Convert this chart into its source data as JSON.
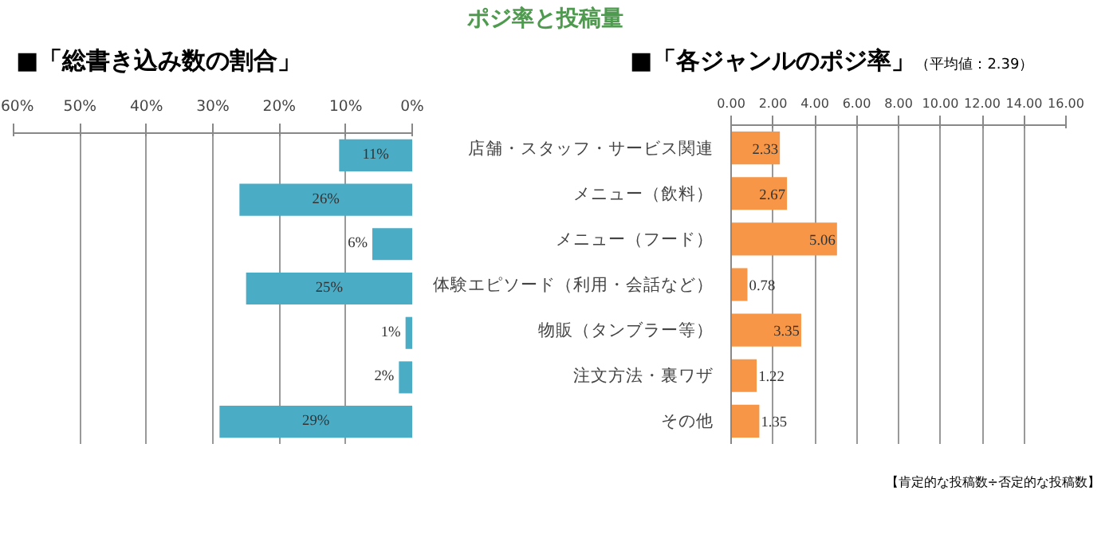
{
  "chart_data": [
    {
      "type": "bar",
      "orientation": "horizontal",
      "title": "■「総書き込み数の割合」",
      "categories": [
        null,
        null,
        null,
        null,
        null,
        null,
        null
      ],
      "series": [
        {
          "color": "#4bacc6",
          "values": [
            11,
            26,
            6,
            25,
            1,
            2,
            29
          ],
          "value_labels": [
            "11%",
            "26%",
            "6%",
            "25%",
            "1%",
            "2%",
            "29%"
          ]
        }
      ],
      "xlim": [
        60,
        0
      ],
      "xticks": [
        {
          "value": 60,
          "label": "60%"
        },
        {
          "value": 50,
          "label": "50%"
        },
        {
          "value": 40,
          "label": "40%"
        },
        {
          "value": 30,
          "label": "30%"
        },
        {
          "value": 20,
          "label": "20%"
        },
        {
          "value": 10,
          "label": "10%"
        },
        {
          "value": 0,
          "label": "0%"
        }
      ],
      "grid": "x",
      "tick_labels": "x"
    },
    {
      "type": "bar",
      "orientation": "horizontal",
      "title": "ポジ率と投稿量",
      "subtitle": "■「各ジャンルのポジ率」",
      "categories": [
        "店舗・スタッフ・サービス関連",
        "メニュー（飲料）",
        "メニュー（フード）",
        "体験エピソード（利用・会話など）",
        "物販（タンブラー等）",
        "注文方法・裏ワザ",
        "その他"
      ],
      "series": [
        {
          "color": "#f79646",
          "values": [
            2.33,
            2.67,
            5.06,
            0.78,
            3.35,
            1.22,
            1.35
          ]
        }
      ],
      "data_labels": true,
      "xlim": [
        0,
        16
      ],
      "xticks": [
        {
          "value": 0,
          "label": "0.00"
        },
        {
          "value": 2,
          "label": "2.00"
        },
        {
          "value": 4,
          "label": "4.00"
        },
        {
          "value": 6,
          "label": "6.00"
        },
        {
          "value": 8,
          "label": "8.00"
        },
        {
          "value": 10,
          "label": "10.00"
        },
        {
          "value": 12,
          "label": "12.00"
        },
        {
          "value": 14,
          "label": "14.00"
        },
        {
          "value": 16,
          "label": "16.00"
        }
      ],
      "grid": "x",
      "annotations": [
        "（平均値：2.39）",
        "【肯定的な投稿数÷否定的な投稿数】"
      ]
    }
  ]
}
